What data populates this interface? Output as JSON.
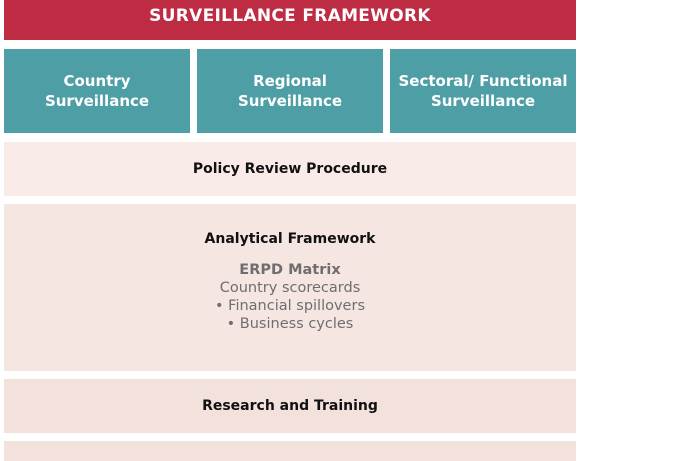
{
  "header": {
    "title": "SURVEILLANCE FRAMEWORK",
    "color": "#be2c43"
  },
  "pillars": [
    {
      "line1": "Country",
      "line2": "Surveillance"
    },
    {
      "line1": "Regional",
      "line2": "Surveillance"
    },
    {
      "line1": "Sectoral/ Functional",
      "line2": "Surveillance"
    }
  ],
  "pillar_color": "#4e9ea6",
  "policy_review": {
    "title": "Policy Review Procedure"
  },
  "analytical": {
    "title": "Analytical Framework",
    "subtitle": "ERPD Matrix",
    "items": [
      "Country scorecards",
      "• Financial spillovers",
      "• Business cycles"
    ]
  },
  "research": {
    "title": "Research and Training"
  }
}
